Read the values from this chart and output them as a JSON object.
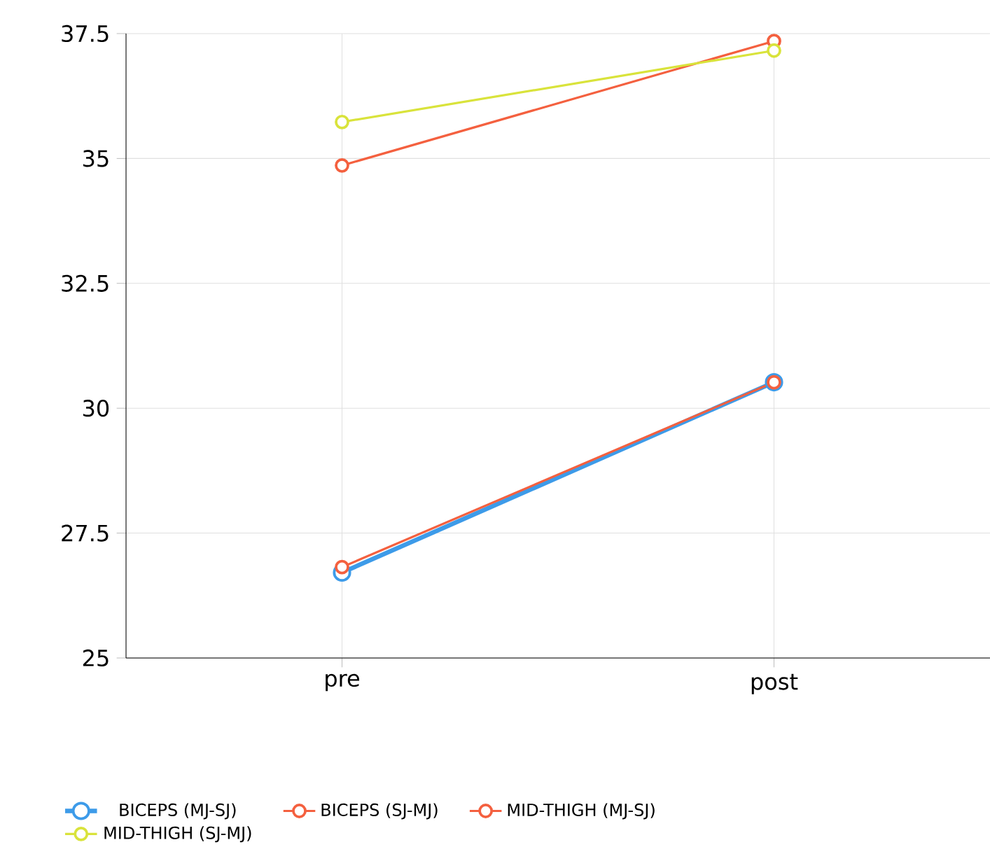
{
  "chart_data": {
    "type": "line",
    "categories": [
      "pre",
      "post"
    ],
    "series": [
      {
        "name": "BICEPS (MJ-SJ)",
        "color": "#3d9be9",
        "values": [
          26.71,
          30.52
        ]
      },
      {
        "name": "BICEPS (SJ-MJ)",
        "color": "#f4603f",
        "values": [
          26.82,
          30.52
        ]
      },
      {
        "name": "MID-THIGH (MJ-SJ)",
        "color": "#f4603f",
        "values": [
          34.86,
          37.35
        ]
      },
      {
        "name": "MID-THIGH (SJ-MJ)",
        "color": "#d9e33b",
        "values": [
          35.73,
          37.16
        ]
      }
    ],
    "ylim": [
      25,
      37.5
    ],
    "yticks": [
      25,
      {
        "value": 27.5,
        "label": "27.5"
      },
      30,
      {
        "value": 32.5,
        "label": "32.5"
      },
      35,
      {
        "value": 37.5,
        "label": "37.5"
      }
    ],
    "grid": true,
    "legend": "bottom",
    "marker": "circle",
    "line_style": "solid"
  }
}
